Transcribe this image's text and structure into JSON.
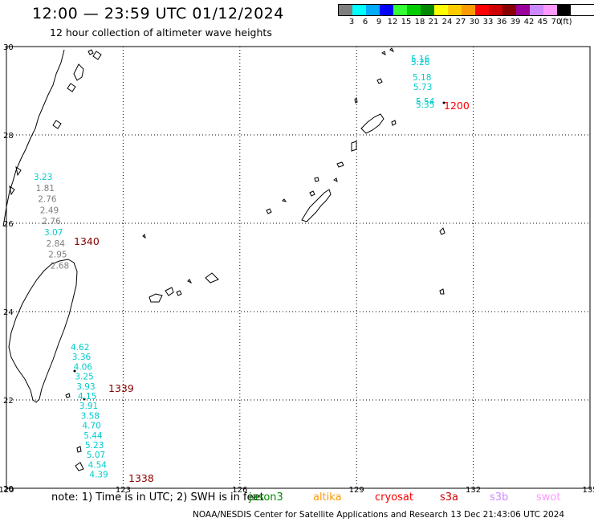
{
  "header": {
    "title": "12:00  —  23:59  UTC  01/12/2024",
    "subtitle": "12 hour collection of altimeter wave heights"
  },
  "legend": {
    "colors": [
      "#7f7f7f",
      "#00ffff",
      "#00aaff",
      "#0000ff",
      "#33ff33",
      "#00cc00",
      "#008800",
      "#ffff00",
      "#ffcc00",
      "#ff9900",
      "#ff0000",
      "#cc0000",
      "#880000",
      "#990099",
      "#cc88ff",
      "#ff99ff",
      "#000000"
    ],
    "ticks": [
      "3",
      "6",
      "9",
      "12",
      "15",
      "18",
      "21",
      "24",
      "27",
      "30",
      "33",
      "36",
      "39",
      "42",
      "45",
      "70",
      "(ft)"
    ]
  },
  "map": {
    "lat_labels": [
      "30",
      "28",
      "26",
      "24",
      "22",
      "20"
    ],
    "lon_labels": [
      "120",
      "123",
      "126",
      "129",
      "132",
      "135"
    ],
    "tracks": [
      {
        "time": "1340",
        "time_color": "#880000",
        "labels": [
          {
            "text": "3.23",
            "color": "#00cccc"
          },
          {
            "text": "1.81",
            "color": "#7f7f7f"
          },
          {
            "text": "2.76",
            "color": "#7f7f7f"
          },
          {
            "text": "2.49",
            "color": "#7f7f7f"
          },
          {
            "text": "2.76",
            "color": "#7f7f7f"
          },
          {
            "text": "3.07",
            "color": "#00cccc"
          },
          {
            "text": "2.84",
            "color": "#7f7f7f"
          },
          {
            "text": "2.95",
            "color": "#7f7f7f"
          },
          {
            "text": "2.68",
            "color": "#7f7f7f"
          }
        ]
      },
      {
        "time": "1339",
        "time_color": "#880000",
        "labels": [
          {
            "text": "4.62",
            "color": "#00cccc"
          },
          {
            "text": "3.36",
            "color": "#00cccc"
          },
          {
            "text": "4.06",
            "color": "#00cccc"
          },
          {
            "text": "3.25",
            "color": "#00cccc"
          },
          {
            "text": "3.93",
            "color": "#00cccc"
          },
          {
            "text": "4.15",
            "color": "#00cccc"
          },
          {
            "text": "3.91",
            "color": "#00cccc"
          },
          {
            "text": "3.58",
            "color": "#00cccc"
          },
          {
            "text": "4.70",
            "color": "#00cccc"
          },
          {
            "text": "5.44",
            "color": "#00cccc"
          },
          {
            "text": "5.23",
            "color": "#00cccc"
          },
          {
            "text": "5.07",
            "color": "#00cccc"
          },
          {
            "text": "4.54",
            "color": "#00cccc"
          },
          {
            "text": "4.39",
            "color": "#00cccc"
          }
        ]
      },
      {
        "time": "1338",
        "time_color": "#880000",
        "labels": []
      },
      {
        "time": "1200",
        "time_color": "#ff0000",
        "labels": [
          {
            "text": "5.16",
            "color": "#00cccc"
          },
          {
            "text": "5.26",
            "color": "#00cccc"
          },
          {
            "text": "5.18",
            "color": "#00cccc"
          },
          {
            "text": "5.73",
            "color": "#00cccc"
          },
          {
            "text": "5.54",
            "color": "#00cccc"
          },
          {
            "text": "5.35",
            "color": "#00cccc"
          }
        ]
      }
    ]
  },
  "footer": {
    "note": "note:  1) Time is in UTC;  2) SWH is in feet",
    "satellites": [
      {
        "name": "jason3",
        "color": "#008800"
      },
      {
        "name": "altika",
        "color": "#ff9900"
      },
      {
        "name": "cryosat",
        "color": "#ff0000"
      },
      {
        "name": "s3a",
        "color": "#cc0000"
      },
      {
        "name": "s3b",
        "color": "#cc88ff"
      },
      {
        "name": "swot",
        "color": "#ff99ff"
      }
    ],
    "credit": "NOAA/NESDIS Center for Satellite Applications and Research    13 Dec 21:43:06 UTC 2024"
  }
}
